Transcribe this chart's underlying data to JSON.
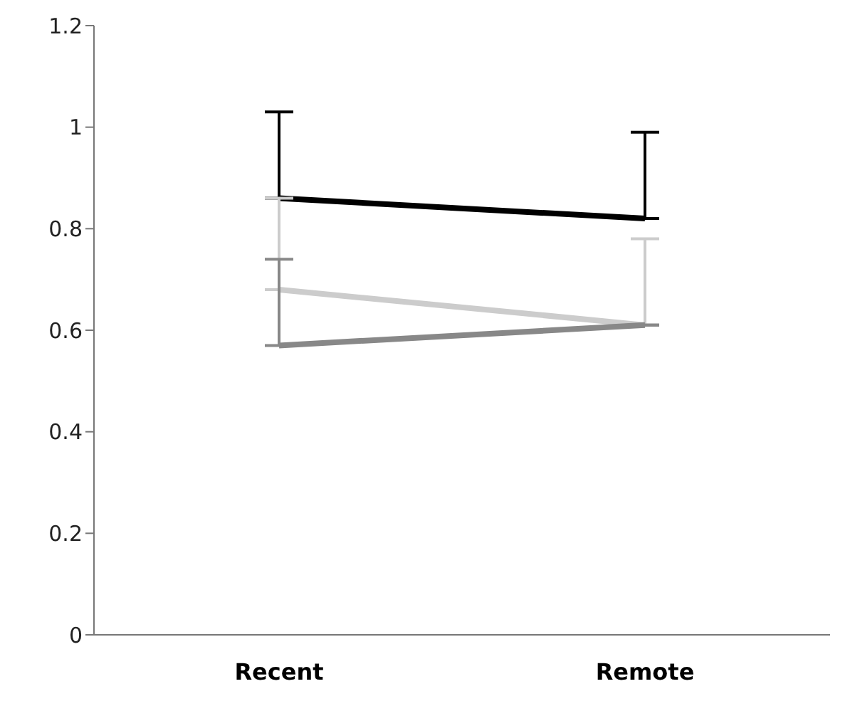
{
  "chart_data": {
    "type": "line",
    "categories": [
      "Recent",
      "Remote"
    ],
    "series": [
      {
        "color": "#000000",
        "values": [
          0.86,
          0.82
        ],
        "errors": [
          [
            0.86,
            1.03
          ],
          [
            0.82,
            0.99
          ]
        ]
      },
      {
        "color": "#cccccc",
        "values": [
          0.68,
          0.61
        ],
        "errors": [
          [
            0.68,
            0.86
          ],
          [
            0.61,
            0.78
          ]
        ]
      },
      {
        "color": "#888888",
        "values": [
          0.57,
          0.61
        ],
        "errors": [
          [
            0.57,
            0.74
          ],
          null
        ]
      }
    ],
    "ylim": [
      0,
      1.2
    ],
    "yticks": [
      0,
      0.2,
      0.4,
      0.6,
      0.8,
      1,
      1.2
    ],
    "grid": false,
    "legend": false,
    "marker": "none",
    "line_style": "solid"
  }
}
